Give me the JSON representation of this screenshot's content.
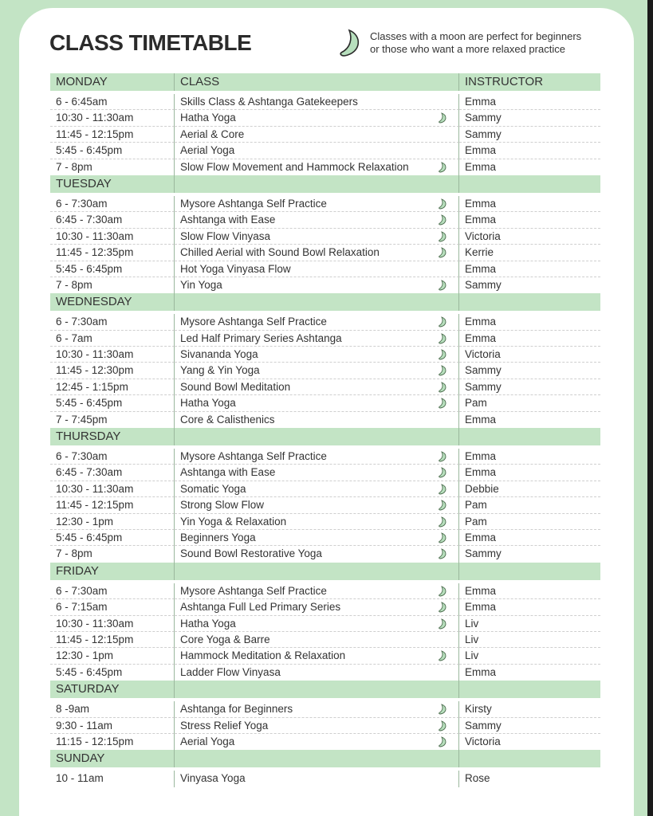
{
  "title": "CLASS TIMETABLE",
  "legend": {
    "icon": "moon-icon",
    "line1": "Classes with a moon are perfect for beginners",
    "line2": "or those who want a more relaxed practice"
  },
  "colors": {
    "accent": "#c3e4c5",
    "moon": "#a9d6b0"
  },
  "columns": {
    "class": "CLASS",
    "instructor": "INSTRUCTOR"
  },
  "days": [
    {
      "day": "MONDAY",
      "classes": [
        {
          "time": "6 - 6:45am",
          "name": "Skills Class & Ashtanga Gatekeepers",
          "moon": false,
          "instructor": "Emma"
        },
        {
          "time": "10:30 - 11:30am",
          "name": "Hatha Yoga",
          "moon": true,
          "instructor": "Sammy"
        },
        {
          "time": "11:45 - 12:15pm",
          "name": "Aerial & Core",
          "moon": false,
          "instructor": "Sammy"
        },
        {
          "time": "5:45 - 6:45pm",
          "name": "Aerial Yoga",
          "moon": false,
          "instructor": "Emma"
        },
        {
          "time": "7 - 8pm",
          "name": "Slow Flow Movement and Hammock Relaxation",
          "moon": true,
          "instructor": "Emma"
        }
      ]
    },
    {
      "day": "TUESDAY",
      "classes": [
        {
          "time": "6 - 7:30am",
          "name": "Mysore Ashtanga Self Practice",
          "moon": true,
          "instructor": "Emma"
        },
        {
          "time": "6:45 - 7:30am",
          "name": "Ashtanga with Ease",
          "moon": true,
          "instructor": "Emma"
        },
        {
          "time": "10:30 - 11:30am",
          "name": "Slow Flow Vinyasa",
          "moon": true,
          "instructor": "Victoria"
        },
        {
          "time": "11:45 - 12:35pm",
          "name": "Chilled Aerial with Sound Bowl Relaxation",
          "moon": true,
          "instructor": "Kerrie"
        },
        {
          "time": "5:45 - 6:45pm",
          "name": "Hot Yoga Vinyasa Flow",
          "moon": false,
          "instructor": "Emma"
        },
        {
          "time": "7 - 8pm",
          "name": "Yin Yoga",
          "moon": true,
          "instructor": "Sammy"
        }
      ]
    },
    {
      "day": "WEDNESDAY",
      "classes": [
        {
          "time": "6 - 7:30am",
          "name": "Mysore Ashtanga Self Practice",
          "moon": true,
          "instructor": "Emma"
        },
        {
          "time": "6 - 7am",
          "name": "Led Half Primary Series Ashtanga",
          "moon": true,
          "instructor": "Emma"
        },
        {
          "time": "10:30 - 11:30am",
          "name": "Sivananda Yoga",
          "moon": true,
          "instructor": "Victoria"
        },
        {
          "time": "11:45 - 12:30pm",
          "name": "Yang & Yin Yoga",
          "moon": true,
          "instructor": "Sammy"
        },
        {
          "time": "12:45 - 1:15pm",
          "name": "Sound Bowl Meditation",
          "moon": true,
          "instructor": "Sammy"
        },
        {
          "time": "5:45 - 6:45pm",
          "name": "Hatha Yoga",
          "moon": true,
          "instructor": "Pam"
        },
        {
          "time": "7 - 7:45pm",
          "name": "Core & Calisthenics",
          "moon": false,
          "instructor": "Emma"
        }
      ]
    },
    {
      "day": "THURSDAY",
      "classes": [
        {
          "time": "6 - 7:30am",
          "name": "Mysore Ashtanga Self Practice",
          "moon": true,
          "instructor": "Emma"
        },
        {
          "time": "6:45 - 7:30am",
          "name": "Ashtanga with Ease",
          "moon": true,
          "instructor": "Emma"
        },
        {
          "time": "10:30 - 11:30am",
          "name": "Somatic Yoga",
          "moon": true,
          "instructor": "Debbie"
        },
        {
          "time": "11:45 - 12:15pm",
          "name": "Strong Slow Flow",
          "moon": true,
          "instructor": "Pam"
        },
        {
          "time": "12:30 - 1pm",
          "name": "Yin Yoga & Relaxation",
          "moon": true,
          "instructor": "Pam"
        },
        {
          "time": "5:45 - 6:45pm",
          "name": "Beginners Yoga",
          "moon": true,
          "instructor": "Emma"
        },
        {
          "time": "7 - 8pm",
          "name": "Sound Bowl Restorative Yoga",
          "moon": true,
          "instructor": "Sammy"
        }
      ]
    },
    {
      "day": "FRIDAY",
      "classes": [
        {
          "time": "6 - 7:30am",
          "name": "Mysore Ashtanga Self Practice",
          "moon": true,
          "instructor": "Emma"
        },
        {
          "time": "6 - 7:15am",
          "name": "Ashtanga Full Led Primary Series",
          "moon": true,
          "instructor": "Emma"
        },
        {
          "time": "10:30 - 11:30am",
          "name": "Hatha Yoga",
          "moon": true,
          "instructor": "Liv"
        },
        {
          "time": "11:45 - 12:15pm",
          "name": "Core Yoga & Barre",
          "moon": false,
          "instructor": "Liv"
        },
        {
          "time": "12:30 - 1pm",
          "name": "Hammock Meditation & Relaxation",
          "moon": true,
          "instructor": "Liv"
        },
        {
          "time": "5:45 - 6:45pm",
          "name": "Ladder Flow Vinyasa",
          "moon": false,
          "instructor": "Emma"
        }
      ]
    },
    {
      "day": "SATURDAY",
      "classes": [
        {
          "time": "8 -9am",
          "name": "Ashtanga for Beginners",
          "moon": true,
          "instructor": "Kirsty"
        },
        {
          "time": "9:30 - 11am",
          "name": "Stress Relief Yoga",
          "moon": true,
          "instructor": "Sammy"
        },
        {
          "time": "11:15 - 12:15pm",
          "name": "Aerial Yoga",
          "moon": true,
          "instructor": "Victoria"
        }
      ]
    },
    {
      "day": "SUNDAY",
      "classes": [
        {
          "time": "10 - 11am",
          "name": "Vinyasa Yoga",
          "moon": false,
          "instructor": "Rose"
        }
      ]
    }
  ]
}
